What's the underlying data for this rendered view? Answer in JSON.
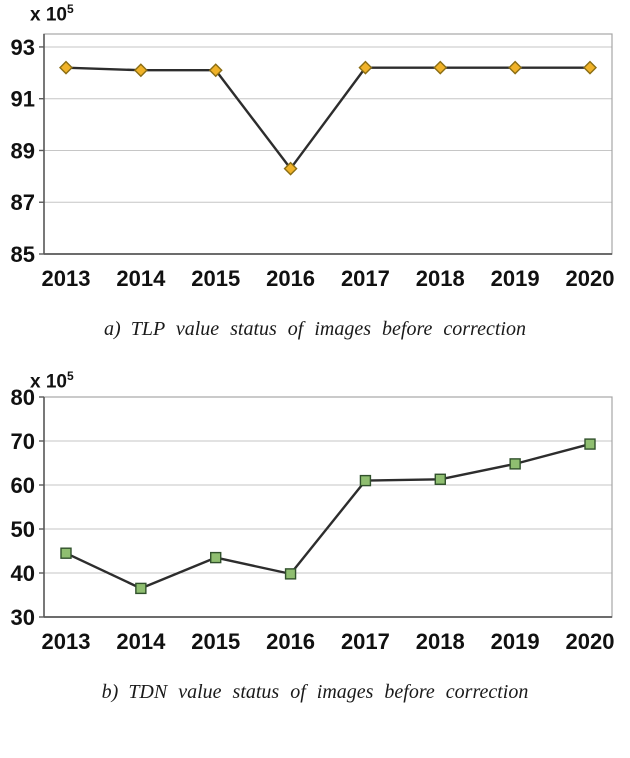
{
  "figure": {
    "background": "#ffffff"
  },
  "chart_data": [
    {
      "type": "line",
      "title": "",
      "caption_label": "a)",
      "caption_text": "TLP value status of images before correction",
      "ylabel_prefix": "x 10",
      "ylabel_exponent": "5",
      "xlabel": "",
      "categories": [
        "2013",
        "2014",
        "2015",
        "2016",
        "2017",
        "2018",
        "2019",
        "2020"
      ],
      "series": [
        {
          "name": "TLP",
          "values": [
            92.2,
            92.1,
            92.1,
            88.3,
            92.2,
            92.2,
            92.2,
            92.2
          ]
        }
      ],
      "ylim": [
        85,
        93.5
      ],
      "yticks": [
        85,
        87,
        89,
        91,
        93
      ],
      "grid": true,
      "legend": "none",
      "marker": "diamond",
      "marker_fill": "#f0b228",
      "marker_stroke": "#8a6d14",
      "line_color": "#2d2d2d",
      "grid_color": "#c6c6c6",
      "axis_color": "#5a5a5a",
      "border_color": "#a6a6a6"
    },
    {
      "type": "line",
      "title": "",
      "caption_label": "b)",
      "caption_text": "TDN value status of images before correction",
      "ylabel_prefix": "x 10",
      "ylabel_exponent": "5",
      "xlabel": "",
      "categories": [
        "2013",
        "2014",
        "2015",
        "2016",
        "2017",
        "2018",
        "2019",
        "2020"
      ],
      "series": [
        {
          "name": "TDN",
          "values": [
            44.5,
            36.5,
            43.5,
            39.8,
            61.0,
            61.3,
            64.8,
            69.3
          ]
        }
      ],
      "ylim": [
        30,
        80
      ],
      "yticks": [
        30,
        40,
        50,
        60,
        70,
        80
      ],
      "grid": true,
      "legend": "none",
      "marker": "square",
      "marker_fill": "#8fbe70",
      "marker_stroke": "#31512c",
      "line_color": "#2d2d2d",
      "grid_color": "#c6c6c6",
      "axis_color": "#5a5a5a",
      "border_color": "#a6a6a6"
    }
  ]
}
